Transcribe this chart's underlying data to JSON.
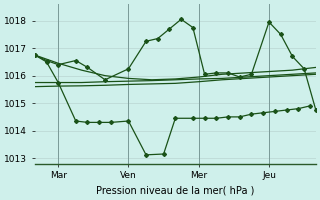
{
  "title": "",
  "xlabel": "Pression niveau de la mer( hPa )",
  "ylabel": "",
  "bg_color": "#cff0eb",
  "grid_color": "#c0ddd9",
  "line_color": "#1a5218",
  "marker_color": "#1a5218",
  "xlim": [
    0,
    96
  ],
  "ylim": [
    1012.8,
    1018.6
  ],
  "yticks": [
    1013,
    1014,
    1015,
    1016,
    1017,
    1018
  ],
  "xtick_labels": [
    "Mar",
    "Ven",
    "Mer",
    "Jeu"
  ],
  "xtick_positions": [
    8,
    32,
    56,
    80
  ],
  "vline_positions": [
    8,
    32,
    56,
    80
  ],
  "series": [
    {
      "x": [
        0,
        8,
        16,
        24,
        32,
        40,
        48,
        56,
        64,
        72,
        80,
        88,
        96
      ],
      "y": [
        1016.75,
        1016.45,
        1016.2,
        1016.0,
        1015.9,
        1015.85,
        1015.88,
        1015.95,
        1016.05,
        1016.1,
        1016.15,
        1016.2,
        1016.3
      ],
      "marker": false
    },
    {
      "x": [
        0,
        8,
        16,
        24,
        32,
        40,
        48,
        56,
        64,
        72,
        80,
        88,
        96
      ],
      "y": [
        1015.75,
        1015.75,
        1015.75,
        1015.78,
        1015.8,
        1015.82,
        1015.85,
        1015.88,
        1015.9,
        1015.95,
        1016.0,
        1016.05,
        1016.1
      ],
      "marker": false
    },
    {
      "x": [
        0,
        8,
        16,
        24,
        32,
        40,
        48,
        56,
        64,
        72,
        80,
        88,
        96
      ],
      "y": [
        1015.6,
        1015.62,
        1015.63,
        1015.65,
        1015.68,
        1015.7,
        1015.72,
        1015.78,
        1015.85,
        1015.9,
        1015.95,
        1016.0,
        1016.05
      ],
      "marker": false
    },
    {
      "x": [
        0,
        4,
        8,
        14,
        18,
        22,
        26,
        32,
        38,
        44,
        48,
        54,
        58,
        62,
        66,
        70,
        74,
        78,
        82,
        86,
        90,
        94
      ],
      "y": [
        1016.75,
        1016.5,
        1015.75,
        1014.35,
        1014.3,
        1014.3,
        1014.3,
        1014.35,
        1013.12,
        1013.15,
        1014.45,
        1014.45,
        1014.45,
        1014.45,
        1014.5,
        1014.5,
        1014.6,
        1014.65,
        1014.7,
        1014.75,
        1014.8,
        1014.9
      ],
      "marker": true
    },
    {
      "x": [
        0,
        4,
        8,
        14,
        18,
        24,
        32,
        38,
        42,
        46,
        50,
        54,
        58,
        62,
        66,
        70,
        74,
        80,
        84,
        88,
        92,
        96
      ],
      "y": [
        1016.75,
        1016.55,
        1016.4,
        1016.55,
        1016.3,
        1015.85,
        1016.25,
        1017.25,
        1017.35,
        1017.7,
        1018.05,
        1017.75,
        1016.05,
        1016.1,
        1016.1,
        1015.95,
        1016.05,
        1017.95,
        1017.5,
        1016.7,
        1016.25,
        1014.75
      ],
      "marker": true
    }
  ]
}
